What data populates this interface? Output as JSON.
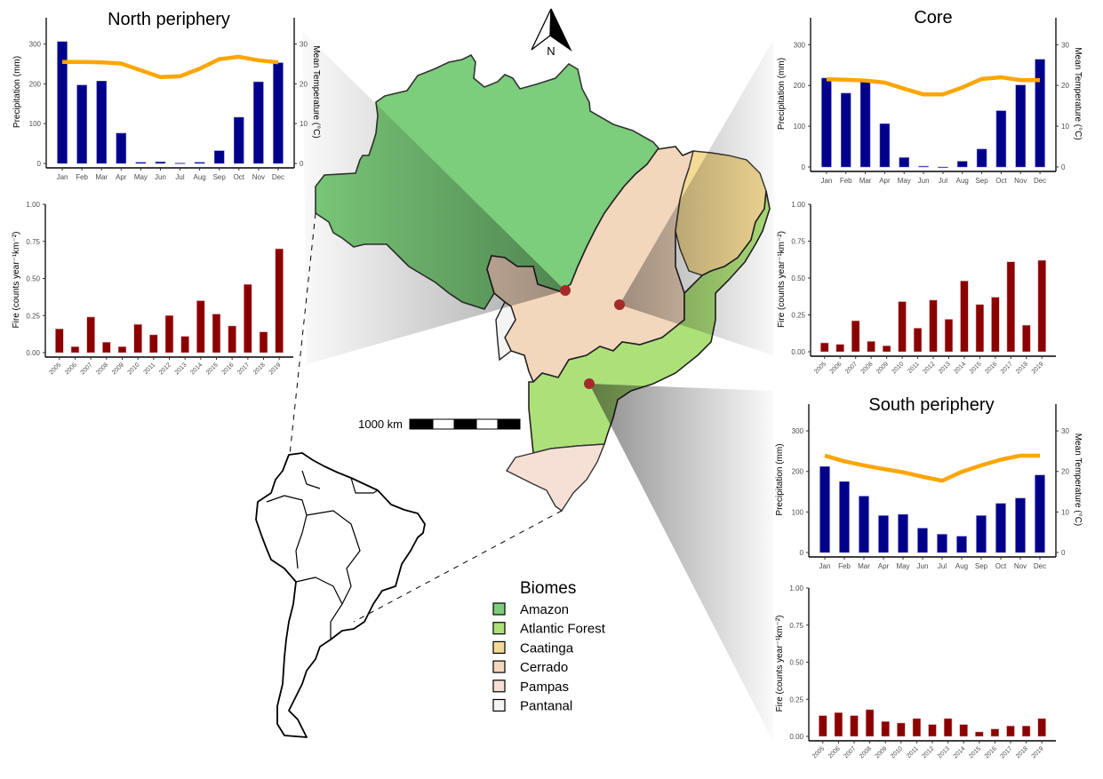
{
  "chart_data": [
    {
      "type": "bar+line",
      "panel": "climate",
      "title": "North periphery",
      "categories": [
        "Jan",
        "Feb",
        "Mar",
        "Apr",
        "May",
        "Jun",
        "Jul",
        "Aug",
        "Sep",
        "Oct",
        "Nov",
        "Dec"
      ],
      "series": [
        {
          "name": "Precipitation",
          "axis": "left",
          "type": "bar",
          "values": [
            306,
            197,
            207,
            76,
            3,
            4,
            1,
            3,
            32,
            116,
            205,
            253
          ]
        },
        {
          "name": "Mean Temperature",
          "axis": "right",
          "type": "line",
          "values": [
            25.5,
            25.5,
            25.4,
            25.1,
            23.4,
            21.7,
            21.9,
            23.8,
            26.2,
            26.8,
            25.9,
            25.4
          ]
        }
      ],
      "ylabel": "Precipitation (mm)",
      "ylabel_right": "Mean Temperature (°C)",
      "ylim": [
        0,
        366
      ],
      "yticks": [
        0,
        100,
        200,
        300
      ],
      "ylim_right": [
        0,
        36.6
      ],
      "yticks_right": [
        0,
        10,
        20,
        30
      ],
      "colors": {
        "bar": "#00008b",
        "line": "#ffa500"
      }
    },
    {
      "type": "bar",
      "panel": "fire",
      "region": "North periphery",
      "categories": [
        "2005",
        "2006",
        "2007",
        "2008",
        "2009",
        "2010",
        "2011",
        "2012",
        "2013",
        "2014",
        "2015",
        "2016",
        "2017",
        "2018",
        "2019"
      ],
      "values": [
        0.16,
        0.04,
        0.24,
        0.07,
        0.04,
        0.19,
        0.12,
        0.25,
        0.11,
        0.35,
        0.26,
        0.18,
        0.46,
        0.14,
        0.7
      ],
      "ylabel": "Fire (counts year⁻¹km⁻²)",
      "ylim": [
        0,
        1.0
      ],
      "yticks": [
        "0.00",
        "0.25",
        "0.50",
        "0.75",
        "1.00"
      ],
      "colors": {
        "bar": "#8b0000"
      }
    },
    {
      "type": "bar+line",
      "panel": "climate",
      "title": "Core",
      "categories": [
        "Jan",
        "Feb",
        "Mar",
        "Apr",
        "May",
        "Jun",
        "Jul",
        "Aug",
        "Sep",
        "Oct",
        "Nov",
        "Dec"
      ],
      "series": [
        {
          "name": "Precipitation",
          "axis": "left",
          "type": "bar",
          "values": [
            218,
            181,
            209,
            106,
            23,
            2,
            0,
            14,
            44,
            138,
            201,
            264
          ]
        },
        {
          "name": "Mean Temperature",
          "axis": "right",
          "type": "line",
          "values": [
            21.5,
            21.4,
            21.2,
            20.7,
            19.2,
            17.8,
            17.8,
            19.5,
            21.6,
            22.0,
            21.3,
            21.3
          ]
        }
      ],
      "ylabel": "Precipitation (mm)",
      "ylabel_right": "Mean Temperature (°C)",
      "ylim": [
        0,
        366
      ],
      "yticks": [
        0,
        100,
        200,
        300
      ],
      "ylim_right": [
        0,
        36.6
      ],
      "yticks_right": [
        0,
        10,
        20,
        30
      ],
      "colors": {
        "bar": "#00008b",
        "line": "#ffa500"
      }
    },
    {
      "type": "bar",
      "panel": "fire",
      "region": "Core",
      "categories": [
        "2005",
        "2006",
        "2007",
        "2008",
        "2009",
        "2010",
        "2011",
        "2012",
        "2013",
        "2014",
        "2015",
        "2016",
        "2017",
        "2018",
        "2019"
      ],
      "values": [
        0.06,
        0.05,
        0.21,
        0.07,
        0.04,
        0.34,
        0.16,
        0.35,
        0.22,
        0.48,
        0.32,
        0.37,
        0.61,
        0.18,
        0.62
      ],
      "ylabel": "Fire (counts year⁻¹km⁻²)",
      "ylim": [
        0,
        1.0
      ],
      "yticks": [
        "0.00",
        "0.25",
        "0.50",
        "0.75",
        "1.00"
      ],
      "colors": {
        "bar": "#8b0000"
      }
    },
    {
      "type": "bar+line",
      "panel": "climate",
      "title": "South periphery",
      "categories": [
        "Jan",
        "Feb",
        "Mar",
        "Apr",
        "May",
        "Jun",
        "Jul",
        "Aug",
        "Sep",
        "Oct",
        "Nov",
        "Dec"
      ],
      "series": [
        {
          "name": "Precipitation",
          "axis": "left",
          "type": "bar",
          "values": [
            212,
            175,
            139,
            91,
            94,
            60,
            45,
            40,
            91,
            121,
            134,
            191
          ]
        },
        {
          "name": "Mean Temperature",
          "axis": "right",
          "type": "line",
          "values": [
            23.9,
            22.5,
            21.5,
            20.6,
            19.8,
            18.7,
            17.7,
            19.9,
            21.5,
            22.9,
            23.9,
            23.9
          ]
        }
      ],
      "ylabel": "Precipitation (mm)",
      "ylabel_right": "Mean Temperature (°C)",
      "ylim": [
        0,
        366
      ],
      "yticks": [
        0,
        100,
        200,
        300
      ],
      "ylim_right": [
        0,
        36.6
      ],
      "yticks_right": [
        0,
        10,
        20,
        30
      ],
      "colors": {
        "bar": "#00008b",
        "line": "#ffa500"
      }
    },
    {
      "type": "bar",
      "panel": "fire",
      "region": "South periphery",
      "categories": [
        "2005",
        "2006",
        "2007",
        "2008",
        "2009",
        "2010",
        "2011",
        "2012",
        "2013",
        "2014",
        "2015",
        "2016",
        "2017",
        "2018",
        "2019"
      ],
      "values": [
        0.14,
        0.16,
        0.14,
        0.18,
        0.1,
        0.09,
        0.12,
        0.08,
        0.12,
        0.08,
        0.03,
        0.05,
        0.07,
        0.07,
        0.12
      ],
      "ylabel": "Fire (counts year⁻¹km⁻²)",
      "ylim": [
        0,
        1.0
      ],
      "yticks": [
        "0.00",
        "0.25",
        "0.50",
        "0.75",
        "1.00"
      ],
      "colors": {
        "bar": "#8b0000"
      }
    }
  ],
  "map": {
    "north_arrow_label": "N",
    "scale_bar_label": "1000 km",
    "legend": {
      "title": "Biomes",
      "items": [
        {
          "label": "Amazon",
          "color": "#7ccd7c"
        },
        {
          "label": "Atlantic Forest",
          "color": "#aee07a"
        },
        {
          "label": "Caatinga",
          "color": "#f3da95"
        },
        {
          "label": "Cerrado",
          "color": "#f3d7bd"
        },
        {
          "label": "Pampas",
          "color": "#f6e0d6"
        },
        {
          "label": "Pantanal",
          "color": "#f4f4f4"
        }
      ]
    },
    "site_color": "#a52a2a"
  }
}
